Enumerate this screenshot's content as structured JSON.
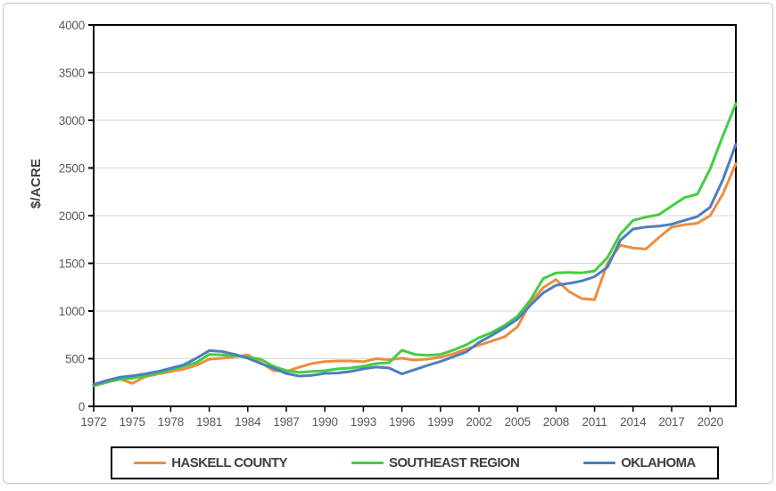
{
  "figure": {
    "background": "#FFFFFF",
    "outer_border_color": "#C9C9C9",
    "axis_color": "#000000",
    "grid_color": "#D9D9D9",
    "tick_label_color": "#595959",
    "ylabel": "$/ACRE",
    "legend_border_color": "#000000"
  },
  "chart_data": {
    "type": "line",
    "title": "",
    "xlabel": "",
    "ylabel": "$/ACRE",
    "ylim": [
      0,
      4000
    ],
    "ytick_step": 500,
    "grid": "horizontal",
    "legend_position": "bottom",
    "x_start": 1972,
    "x_end": 2022,
    "x": [
      1972,
      1973,
      1974,
      1975,
      1976,
      1977,
      1978,
      1979,
      1980,
      1981,
      1982,
      1983,
      1984,
      1985,
      1986,
      1987,
      1988,
      1989,
      1990,
      1991,
      1992,
      1993,
      1994,
      1995,
      1996,
      1997,
      1998,
      1999,
      2000,
      2001,
      2002,
      2003,
      2004,
      2005,
      2006,
      2007,
      2008,
      2009,
      2010,
      2011,
      2012,
      2013,
      2014,
      2015,
      2016,
      2017,
      2018,
      2019,
      2020,
      2021,
      2022
    ],
    "xtick_labels": [
      "1972",
      "1975",
      "1978",
      "1981",
      "1984",
      "1987",
      "1990",
      "1993",
      "1996",
      "1999",
      "2002",
      "2005",
      "2008",
      "2011",
      "2014",
      "2017",
      "2020"
    ],
    "ytick_labels": [
      "0",
      "500",
      "1000",
      "1500",
      "2000",
      "2500",
      "3000",
      "3500",
      "4000"
    ],
    "series": [
      {
        "name": "HASKELL COUNTY",
        "color": "#F08C3C",
        "values": [
          215,
          250,
          290,
          240,
          310,
          340,
          365,
          390,
          430,
          495,
          505,
          520,
          540,
          460,
          375,
          365,
          410,
          450,
          470,
          477,
          477,
          468,
          500,
          490,
          505,
          485,
          495,
          515,
          550,
          600,
          640,
          685,
          730,
          835,
          1085,
          1245,
          1330,
          1205,
          1130,
          1120,
          1500,
          1690,
          1660,
          1650,
          1770,
          1880,
          1905,
          1920,
          2000,
          2230,
          2545
        ]
      },
      {
        "name": "SOUTHEAST REGION",
        "color": "#42CE42",
        "values": [
          220,
          255,
          280,
          295,
          320,
          350,
          385,
          420,
          460,
          545,
          540,
          530,
          515,
          495,
          420,
          375,
          356,
          365,
          374,
          393,
          402,
          421,
          449,
          458,
          590,
          545,
          535,
          545,
          590,
          645,
          720,
          775,
          850,
          945,
          1115,
          1340,
          1400,
          1405,
          1400,
          1420,
          1560,
          1805,
          1950,
          1985,
          2010,
          2100,
          2190,
          2225,
          2490,
          2840,
          3175
        ]
      },
      {
        "name": "OKLAHOMA",
        "color": "#4D7EBF",
        "values": [
          230,
          270,
          305,
          320,
          340,
          365,
          400,
          435,
          505,
          585,
          575,
          545,
          505,
          450,
          400,
          345,
          318,
          325,
          346,
          350,
          365,
          393,
          412,
          402,
          340,
          385,
          430,
          470,
          520,
          570,
          670,
          745,
          825,
          915,
          1060,
          1190,
          1270,
          1290,
          1315,
          1360,
          1460,
          1740,
          1860,
          1880,
          1890,
          1910,
          1950,
          1990,
          2090,
          2380,
          2750
        ]
      }
    ]
  }
}
